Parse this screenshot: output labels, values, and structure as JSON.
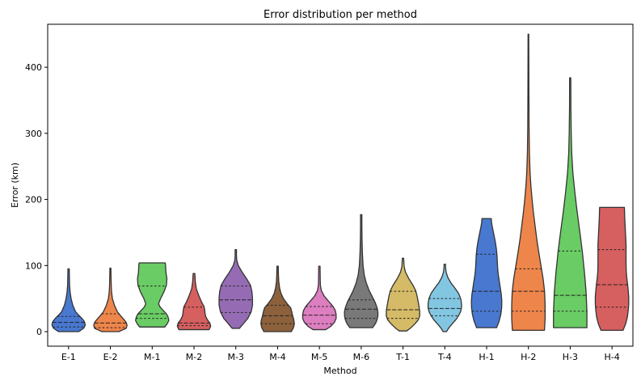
{
  "chart_data": {
    "type": "violin",
    "title": "Error distribution per method",
    "xlabel": "Method",
    "ylabel": "Error (km)",
    "ylim": [
      -22,
      465
    ],
    "yticks": [
      0,
      100,
      200,
      300,
      400
    ],
    "grid": false,
    "legend": "none",
    "inner": "quartile",
    "categories": [
      "E-1",
      "E-2",
      "M-1",
      "M-2",
      "M-3",
      "M-4",
      "M-5",
      "M-6",
      "T-1",
      "T-4",
      "H-1",
      "H-2",
      "H-3",
      "H-4"
    ],
    "series": [
      {
        "category": "E-1",
        "color": "#4878d0",
        "min": 0,
        "max": 95,
        "q1": 7,
        "median": 14,
        "q3": 23,
        "profile": [
          [
            0,
            0.6
          ],
          [
            5,
            0.9
          ],
          [
            10,
            1.0
          ],
          [
            15,
            0.95
          ],
          [
            20,
            0.8
          ],
          [
            25,
            0.6
          ],
          [
            30,
            0.42
          ],
          [
            40,
            0.25
          ],
          [
            50,
            0.15
          ],
          [
            60,
            0.09
          ],
          [
            70,
            0.06
          ],
          [
            80,
            0.05
          ],
          [
            95,
            0.04
          ]
        ]
      },
      {
        "category": "E-2",
        "color": "#ee854a",
        "min": 0,
        "max": 96,
        "q1": 6,
        "median": 13,
        "q3": 27,
        "profile": [
          [
            0,
            0.5
          ],
          [
            5,
            0.95
          ],
          [
            10,
            1.0
          ],
          [
            15,
            0.92
          ],
          [
            20,
            0.75
          ],
          [
            25,
            0.58
          ],
          [
            30,
            0.42
          ],
          [
            40,
            0.24
          ],
          [
            50,
            0.12
          ],
          [
            60,
            0.07
          ],
          [
            70,
            0.05
          ],
          [
            80,
            0.04
          ],
          [
            96,
            0.03
          ]
        ]
      },
      {
        "category": "M-1",
        "color": "#6acc64",
        "min": 7,
        "max": 104,
        "q1": 20,
        "median": 27,
        "q3": 69,
        "profile": [
          [
            7,
            0.75
          ],
          [
            12,
            0.9
          ],
          [
            17,
            1.0
          ],
          [
            22,
            0.95
          ],
          [
            27,
            0.85
          ],
          [
            32,
            0.66
          ],
          [
            37,
            0.48
          ],
          [
            42,
            0.38
          ],
          [
            50,
            0.5
          ],
          [
            60,
            0.7
          ],
          [
            70,
            0.85
          ],
          [
            80,
            0.88
          ],
          [
            90,
            0.82
          ],
          [
            100,
            0.8
          ],
          [
            104,
            0.78
          ]
        ]
      },
      {
        "category": "M-2",
        "color": "#d65f5f",
        "min": 3,
        "max": 88,
        "q1": 9,
        "median": 13,
        "q3": 37,
        "profile": [
          [
            3,
            0.9
          ],
          [
            8,
            1.0
          ],
          [
            13,
            0.95
          ],
          [
            18,
            0.8
          ],
          [
            23,
            0.7
          ],
          [
            28,
            0.66
          ],
          [
            33,
            0.64
          ],
          [
            38,
            0.6
          ],
          [
            45,
            0.45
          ],
          [
            55,
            0.28
          ],
          [
            65,
            0.14
          ],
          [
            75,
            0.08
          ],
          [
            88,
            0.05
          ]
        ]
      },
      {
        "category": "M-3",
        "color": "#956cb4",
        "min": 5,
        "max": 124,
        "q1": 29,
        "median": 48,
        "q3": 69,
        "profile": [
          [
            5,
            0.22
          ],
          [
            12,
            0.45
          ],
          [
            20,
            0.72
          ],
          [
            30,
            0.92
          ],
          [
            40,
            1.0
          ],
          [
            50,
            1.0
          ],
          [
            60,
            0.97
          ],
          [
            70,
            0.88
          ],
          [
            80,
            0.65
          ],
          [
            90,
            0.38
          ],
          [
            100,
            0.15
          ],
          [
            108,
            0.06
          ],
          [
            115,
            0.04
          ],
          [
            124,
            0.04
          ]
        ]
      },
      {
        "category": "M-4",
        "color": "#8c613c",
        "min": 0,
        "max": 99,
        "q1": 12,
        "median": 24,
        "q3": 40,
        "profile": [
          [
            0,
            0.82
          ],
          [
            6,
            0.95
          ],
          [
            12,
            1.0
          ],
          [
            18,
            0.97
          ],
          [
            24,
            0.9
          ],
          [
            30,
            0.85
          ],
          [
            36,
            0.78
          ],
          [
            42,
            0.58
          ],
          [
            50,
            0.35
          ],
          [
            58,
            0.2
          ],
          [
            66,
            0.12
          ],
          [
            76,
            0.07
          ],
          [
            86,
            0.05
          ],
          [
            99,
            0.04
          ]
        ]
      },
      {
        "category": "M-5",
        "color": "#dc7ec0",
        "min": 3,
        "max": 99,
        "q1": 12,
        "median": 25,
        "q3": 38,
        "profile": [
          [
            3,
            0.38
          ],
          [
            8,
            0.68
          ],
          [
            14,
            0.9
          ],
          [
            20,
            1.0
          ],
          [
            26,
            1.0
          ],
          [
            32,
            0.95
          ],
          [
            38,
            0.82
          ],
          [
            46,
            0.55
          ],
          [
            54,
            0.28
          ],
          [
            62,
            0.12
          ],
          [
            70,
            0.06
          ],
          [
            80,
            0.05
          ],
          [
            99,
            0.04
          ]
        ]
      },
      {
        "category": "M-6",
        "color": "#797979",
        "min": 6,
        "max": 177,
        "q1": 20,
        "median": 34,
        "q3": 48,
        "profile": [
          [
            6,
            0.68
          ],
          [
            12,
            0.85
          ],
          [
            18,
            0.95
          ],
          [
            24,
            1.0
          ],
          [
            30,
            1.0
          ],
          [
            36,
            0.95
          ],
          [
            44,
            0.84
          ],
          [
            52,
            0.68
          ],
          [
            62,
            0.48
          ],
          [
            74,
            0.3
          ],
          [
            86,
            0.18
          ],
          [
            100,
            0.11
          ],
          [
            120,
            0.07
          ],
          [
            140,
            0.05
          ],
          [
            160,
            0.04
          ],
          [
            177,
            0.04
          ]
        ]
      },
      {
        "category": "T-1",
        "color": "#d5bb67",
        "min": 1,
        "max": 111,
        "q1": 20,
        "median": 33,
        "q3": 61,
        "profile": [
          [
            1,
            0.22
          ],
          [
            6,
            0.48
          ],
          [
            12,
            0.72
          ],
          [
            18,
            0.92
          ],
          [
            24,
            1.0
          ],
          [
            30,
            1.0
          ],
          [
            38,
            0.96
          ],
          [
            46,
            0.9
          ],
          [
            54,
            0.84
          ],
          [
            62,
            0.76
          ],
          [
            70,
            0.6
          ],
          [
            80,
            0.35
          ],
          [
            90,
            0.15
          ],
          [
            98,
            0.07
          ],
          [
            105,
            0.05
          ],
          [
            111,
            0.04
          ]
        ]
      },
      {
        "category": "T-4",
        "color": "#82c6e2",
        "min": 0,
        "max": 102,
        "q1": 24,
        "median": 35,
        "q3": 50,
        "profile": [
          [
            0,
            0.1
          ],
          [
            6,
            0.25
          ],
          [
            12,
            0.45
          ],
          [
            18,
            0.66
          ],
          [
            24,
            0.82
          ],
          [
            30,
            0.94
          ],
          [
            36,
            1.0
          ],
          [
            42,
            1.0
          ],
          [
            50,
            0.95
          ],
          [
            58,
            0.82
          ],
          [
            66,
            0.6
          ],
          [
            74,
            0.36
          ],
          [
            82,
            0.18
          ],
          [
            90,
            0.08
          ],
          [
            96,
            0.05
          ],
          [
            102,
            0.04
          ]
        ]
      },
      {
        "category": "H-1",
        "color": "#4878d0",
        "min": 6,
        "max": 171,
        "q1": 31,
        "median": 61,
        "q3": 117,
        "profile": [
          [
            6,
            0.6
          ],
          [
            16,
            0.75
          ],
          [
            26,
            0.85
          ],
          [
            36,
            0.9
          ],
          [
            46,
            0.91
          ],
          [
            56,
            0.88
          ],
          [
            66,
            0.82
          ],
          [
            76,
            0.76
          ],
          [
            86,
            0.7
          ],
          [
            96,
            0.66
          ],
          [
            106,
            0.64
          ],
          [
            116,
            0.62
          ],
          [
            126,
            0.58
          ],
          [
            136,
            0.52
          ],
          [
            146,
            0.44
          ],
          [
            156,
            0.36
          ],
          [
            164,
            0.3
          ],
          [
            171,
            0.28
          ]
        ]
      },
      {
        "category": "H-2",
        "color": "#ee854a",
        "min": 2,
        "max": 450,
        "q1": 31,
        "median": 61,
        "q3": 95,
        "profile": [
          [
            2,
            0.96
          ],
          [
            20,
            1.0
          ],
          [
            40,
            1.0
          ],
          [
            60,
            0.97
          ],
          [
            80,
            0.88
          ],
          [
            100,
            0.75
          ],
          [
            120,
            0.62
          ],
          [
            140,
            0.5
          ],
          [
            160,
            0.4
          ],
          [
            180,
            0.3
          ],
          [
            200,
            0.22
          ],
          [
            220,
            0.15
          ],
          [
            240,
            0.1
          ],
          [
            270,
            0.06
          ],
          [
            310,
            0.04
          ],
          [
            360,
            0.03
          ],
          [
            400,
            0.025
          ],
          [
            430,
            0.022
          ],
          [
            450,
            0.02
          ]
        ]
      },
      {
        "category": "H-3",
        "color": "#6acc64",
        "min": 6,
        "max": 384,
        "q1": 31,
        "median": 55,
        "q3": 122,
        "profile": [
          [
            6,
            1.0
          ],
          [
            30,
            1.0
          ],
          [
            60,
            0.95
          ],
          [
            90,
            0.85
          ],
          [
            120,
            0.73
          ],
          [
            150,
            0.58
          ],
          [
            180,
            0.42
          ],
          [
            210,
            0.28
          ],
          [
            240,
            0.16
          ],
          [
            270,
            0.09
          ],
          [
            300,
            0.06
          ],
          [
            340,
            0.04
          ],
          [
            384,
            0.035
          ]
        ]
      },
      {
        "category": "H-4",
        "color": "#d65f5f",
        "min": 2,
        "max": 188,
        "q1": 37,
        "median": 71,
        "q3": 124,
        "profile": [
          [
            2,
            0.66
          ],
          [
            12,
            0.82
          ],
          [
            22,
            0.92
          ],
          [
            32,
            0.97
          ],
          [
            42,
            1.0
          ],
          [
            52,
            1.0
          ],
          [
            62,
            0.97
          ],
          [
            72,
            0.93
          ],
          [
            82,
            0.88
          ],
          [
            92,
            0.85
          ],
          [
            102,
            0.84
          ],
          [
            112,
            0.84
          ],
          [
            122,
            0.84
          ],
          [
            132,
            0.84
          ],
          [
            142,
            0.82
          ],
          [
            152,
            0.8
          ],
          [
            162,
            0.78
          ],
          [
            172,
            0.76
          ],
          [
            182,
            0.75
          ],
          [
            188,
            0.74
          ]
        ]
      }
    ]
  }
}
